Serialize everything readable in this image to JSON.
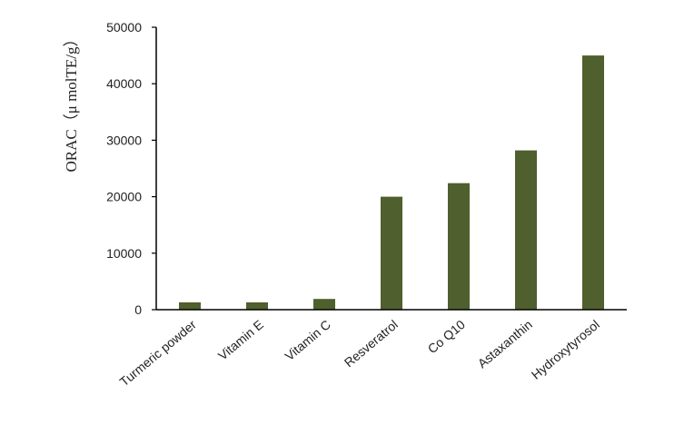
{
  "chart_data": {
    "type": "bar",
    "title": "",
    "xlabel": "",
    "ylabel": "ORAC（μ molTE/g）",
    "categories": [
      "Turmeric powder",
      "Vitamin E",
      "Vitamin C",
      "Resveratrol",
      "Co Q10",
      "Astaxanthin",
      "Hydroxytyrosol"
    ],
    "values": [
      1300,
      1300,
      1900,
      20000,
      22400,
      28200,
      45000
    ],
    "ylim": [
      0,
      50000
    ],
    "yticks": [
      "0",
      "10000",
      "20000",
      "30000",
      "40000",
      "50000"
    ],
    "bar_color": "#4f5f2d",
    "grid": false,
    "legend": "none"
  }
}
